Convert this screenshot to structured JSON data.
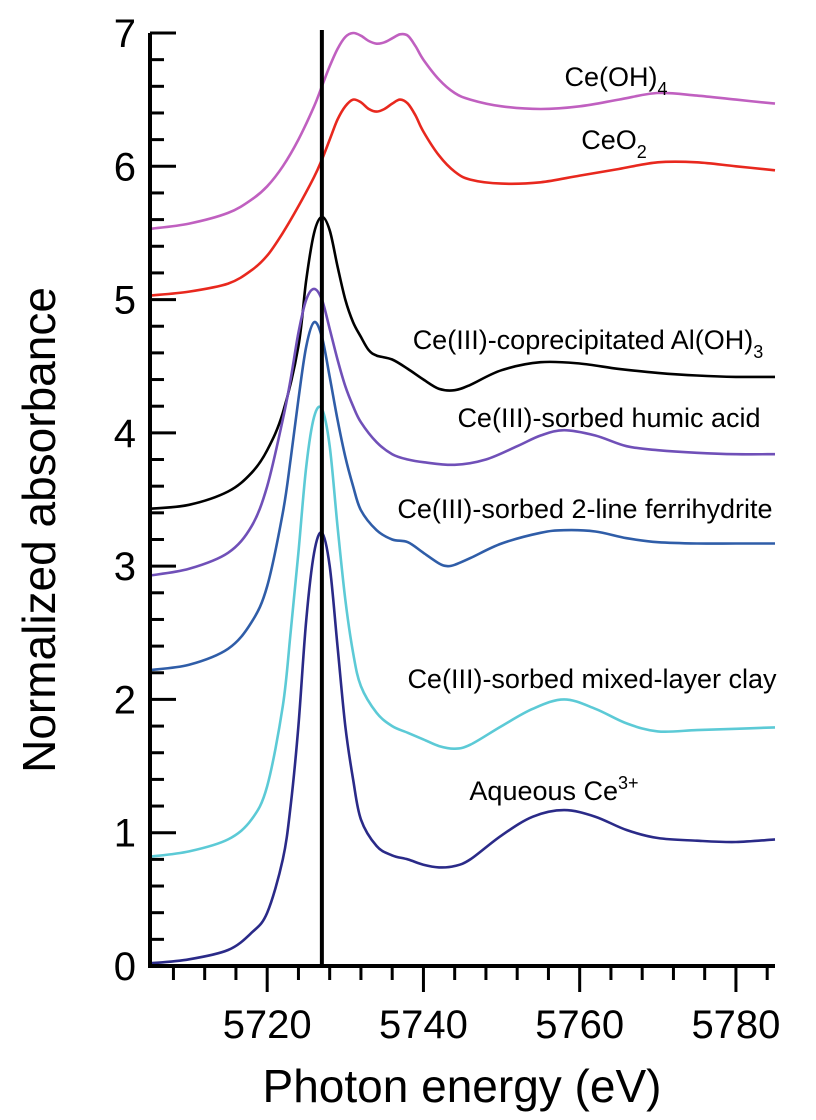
{
  "chart_data": {
    "type": "line",
    "xlabel": "Photon energy (eV)",
    "ylabel": "Normalized absorbance",
    "xlim": [
      5705,
      5785
    ],
    "ylim": [
      0,
      7
    ],
    "xticks": [
      5720,
      5740,
      5760,
      5780
    ],
    "xtick_labels": [
      "5720",
      "5740",
      "5760",
      "5780"
    ],
    "yticks": [
      0,
      1,
      2,
      3,
      4,
      5,
      6,
      7
    ],
    "ytick_labels": [
      "0",
      "1",
      "2",
      "3",
      "4",
      "5",
      "6",
      "7"
    ],
    "reference_line": {
      "x": 5727,
      "label": ""
    },
    "grid": false,
    "series": [
      {
        "name": "Ce(OH)4",
        "label": {
          "main": "Ce(OH)",
          "sub": "4",
          "sup": ""
        },
        "color": "#c060c0",
        "x": [
          5705,
          5710,
          5715,
          5718,
          5720,
          5722,
          5724,
          5726,
          5727,
          5728,
          5729,
          5730,
          5731,
          5732,
          5733,
          5734,
          5735,
          5736,
          5737,
          5738,
          5739,
          5740,
          5742,
          5744,
          5746,
          5750,
          5755,
          5760,
          5765,
          5770,
          5775,
          5780,
          5785
        ],
        "y": [
          5.53,
          5.57,
          5.65,
          5.75,
          5.85,
          6.0,
          6.2,
          6.45,
          6.6,
          6.75,
          6.88,
          6.97,
          7.0,
          6.98,
          6.94,
          6.92,
          6.93,
          6.96,
          6.99,
          6.98,
          6.9,
          6.8,
          6.65,
          6.55,
          6.5,
          6.45,
          6.43,
          6.45,
          6.5,
          6.55,
          6.53,
          6.5,
          6.47
        ]
      },
      {
        "name": "CeO2",
        "label": {
          "main": "CeO",
          "sub": "2",
          "sup": ""
        },
        "color": "#e8281e",
        "x": [
          5705,
          5710,
          5715,
          5718,
          5720,
          5722,
          5724,
          5726,
          5727,
          5728,
          5729,
          5730,
          5731,
          5732,
          5733,
          5734,
          5735,
          5736,
          5737,
          5738,
          5739,
          5740,
          5742,
          5744,
          5746,
          5750,
          5755,
          5760,
          5765,
          5770,
          5775,
          5780,
          5785
        ],
        "y": [
          5.03,
          5.06,
          5.12,
          5.22,
          5.33,
          5.5,
          5.7,
          5.92,
          6.05,
          6.2,
          6.35,
          6.45,
          6.5,
          6.48,
          6.43,
          6.41,
          6.43,
          6.47,
          6.5,
          6.47,
          6.38,
          6.26,
          6.08,
          5.96,
          5.9,
          5.87,
          5.88,
          5.93,
          5.98,
          6.03,
          6.03,
          6.0,
          5.97
        ]
      },
      {
        "name": "Ce(III)-coprecipitated Al(OH)3",
        "label": {
          "main": "Ce(III)-coprecipitated Al(OH)",
          "sub": "3",
          "sup": ""
        },
        "color": "#000000",
        "x": [
          5705,
          5710,
          5715,
          5718,
          5720,
          5722,
          5724,
          5725,
          5726,
          5727,
          5728,
          5729,
          5730,
          5731,
          5732,
          5733,
          5734,
          5736,
          5738,
          5740,
          5742,
          5744,
          5746,
          5750,
          5755,
          5760,
          5765,
          5770,
          5775,
          5780,
          5785
        ],
        "y": [
          3.43,
          3.46,
          3.56,
          3.7,
          3.87,
          4.15,
          4.65,
          5.15,
          5.5,
          5.62,
          5.52,
          5.25,
          5.0,
          4.83,
          4.72,
          4.62,
          4.58,
          4.55,
          4.48,
          4.4,
          4.33,
          4.32,
          4.36,
          4.47,
          4.53,
          4.52,
          4.48,
          4.45,
          4.43,
          4.42,
          4.42
        ]
      },
      {
        "name": "Ce(III)-sorbed humic acid",
        "label": {
          "main": "Ce(III)-sorbed humic acid",
          "sub": "",
          "sup": ""
        },
        "color": "#7050b8",
        "x": [
          5705,
          5710,
          5715,
          5718,
          5720,
          5722,
          5723,
          5724,
          5725,
          5726,
          5727,
          5728,
          5729,
          5730,
          5731,
          5732,
          5734,
          5736,
          5738,
          5740,
          5744,
          5748,
          5752,
          5755,
          5758,
          5762,
          5766,
          5770,
          5775,
          5780,
          5785
        ],
        "y": [
          2.93,
          2.98,
          3.1,
          3.3,
          3.6,
          4.1,
          4.4,
          4.75,
          5.0,
          5.08,
          5.0,
          4.78,
          4.55,
          4.35,
          4.2,
          4.08,
          3.93,
          3.84,
          3.8,
          3.78,
          3.76,
          3.8,
          3.9,
          3.98,
          4.02,
          3.98,
          3.9,
          3.87,
          3.85,
          3.84,
          3.84
        ]
      },
      {
        "name": "Ce(III)-sorbed 2-line ferrihydrite",
        "label": {
          "main": "Ce(III)-sorbed 2-line ferrihydrite",
          "sub": "",
          "sup": ""
        },
        "color": "#2f5da8",
        "x": [
          5705,
          5710,
          5715,
          5718,
          5720,
          5722,
          5723,
          5724,
          5725,
          5726,
          5727,
          5728,
          5729,
          5730,
          5731,
          5732,
          5734,
          5736,
          5738,
          5740,
          5742,
          5743,
          5744,
          5746,
          5750,
          5755,
          5758,
          5762,
          5766,
          5770,
          5775,
          5780,
          5785
        ],
        "y": [
          2.22,
          2.26,
          2.38,
          2.58,
          2.85,
          3.4,
          3.8,
          4.25,
          4.65,
          4.83,
          4.72,
          4.42,
          4.1,
          3.82,
          3.6,
          3.42,
          3.27,
          3.2,
          3.18,
          3.1,
          3.02,
          3.0,
          3.01,
          3.06,
          3.17,
          3.25,
          3.27,
          3.26,
          3.21,
          3.18,
          3.17,
          3.17,
          3.17
        ]
      },
      {
        "name": "Ce(III)-sorbed mixed-layer clay",
        "label": {
          "main": "Ce(III)-sorbed mixed-layer clay",
          "sub": "",
          "sup": ""
        },
        "color": "#5ccad6",
        "x": [
          5705,
          5710,
          5715,
          5718,
          5720,
          5722,
          5723,
          5724,
          5725,
          5726,
          5727,
          5728,
          5729,
          5730,
          5731,
          5732,
          5734,
          5736,
          5738,
          5740,
          5742,
          5744,
          5746,
          5750,
          5754,
          5758,
          5762,
          5766,
          5770,
          5775,
          5780,
          5785
        ],
        "y": [
          0.82,
          0.86,
          0.95,
          1.1,
          1.35,
          1.95,
          2.5,
          3.1,
          3.75,
          4.12,
          4.18,
          3.9,
          3.3,
          2.75,
          2.35,
          2.1,
          1.9,
          1.8,
          1.75,
          1.7,
          1.65,
          1.63,
          1.66,
          1.8,
          1.93,
          2.0,
          1.93,
          1.82,
          1.76,
          1.77,
          1.78,
          1.79
        ]
      },
      {
        "name": "Aqueous Ce3+",
        "label": {
          "main": "Aqueous Ce",
          "sub": "",
          "sup": "3+"
        },
        "color": "#2a2a88",
        "x": [
          5705,
          5710,
          5715,
          5718,
          5720,
          5722,
          5723,
          5724,
          5725,
          5726,
          5727,
          5728,
          5729,
          5730,
          5731,
          5732,
          5734,
          5736,
          5738,
          5740,
          5742,
          5744,
          5746,
          5750,
          5754,
          5758,
          5762,
          5766,
          5770,
          5775,
          5780,
          5785
        ],
        "y": [
          0.02,
          0.05,
          0.12,
          0.25,
          0.4,
          0.8,
          1.2,
          1.8,
          2.6,
          3.1,
          3.25,
          3.0,
          2.4,
          1.8,
          1.4,
          1.1,
          0.9,
          0.83,
          0.8,
          0.76,
          0.74,
          0.75,
          0.8,
          0.98,
          1.12,
          1.17,
          1.12,
          1.02,
          0.96,
          0.94,
          0.93,
          0.95
        ]
      }
    ]
  }
}
